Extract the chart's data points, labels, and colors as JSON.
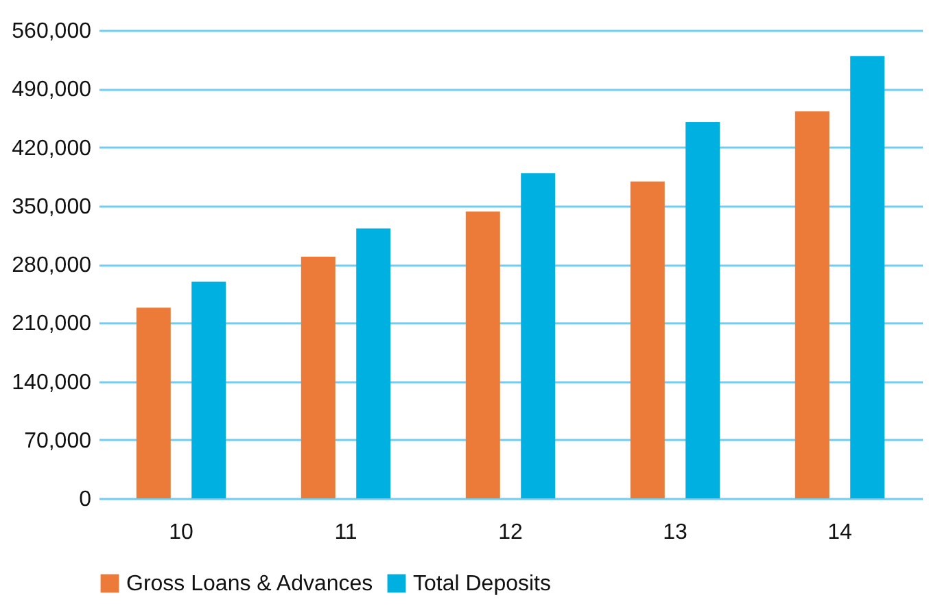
{
  "chart_data": {
    "type": "bar",
    "categories": [
      "10",
      "11",
      "12",
      "13",
      "14"
    ],
    "series": [
      {
        "name": "Gross Loans & Advances",
        "color": "#ec7b3a",
        "values": [
          228000,
          289000,
          343000,
          379000,
          463000
        ]
      },
      {
        "name": "Total Deposits",
        "color": "#00b0e0",
        "values": [
          259000,
          323000,
          389000,
          450000,
          529000
        ]
      }
    ],
    "ylim": [
      0,
      560000
    ],
    "yticks": [
      {
        "value": 0,
        "label": "0"
      },
      {
        "value": 70000,
        "label": "70,000"
      },
      {
        "value": 140000,
        "label": "140,000"
      },
      {
        "value": 210000,
        "label": "210,000"
      },
      {
        "value": 280000,
        "label": "280,000"
      },
      {
        "value": 350000,
        "label": "350,000"
      },
      {
        "value": 420000,
        "label": "420,000"
      },
      {
        "value": 490000,
        "label": "490,000"
      },
      {
        "value": 560000,
        "label": "560,000"
      }
    ],
    "grid": "y",
    "legend": "bottom left"
  }
}
